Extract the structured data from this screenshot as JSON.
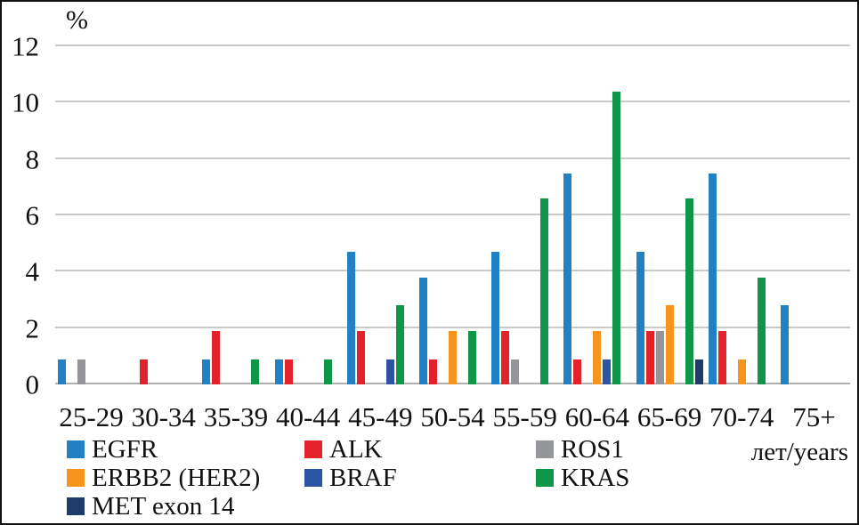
{
  "figure": {
    "y_unit_label": "%",
    "x_unit_label": "лет/years"
  },
  "chart_data": {
    "type": "bar",
    "title": "",
    "xlabel": "лет/years",
    "ylabel": "%",
    "ylim": [
      0,
      12
    ],
    "yticks": [
      0,
      2,
      4,
      6,
      8,
      10,
      12
    ],
    "grid": true,
    "legend_position": "bottom",
    "categories": [
      "25-29",
      "30-34",
      "35-39",
      "40-44",
      "45-49",
      "50-54",
      "55-59",
      "60-64",
      "65-69",
      "70-74",
      "75+"
    ],
    "series": [
      {
        "name": "EGFR",
        "color": "#2181C4",
        "values": [
          0.9,
          0,
          0.9,
          0.9,
          4.7,
          3.8,
          4.7,
          7.5,
          4.7,
          7.5,
          2.8
        ]
      },
      {
        "name": "ALK",
        "color": "#E42229",
        "values": [
          0,
          0.9,
          1.9,
          0.9,
          1.9,
          0.9,
          1.9,
          0.9,
          1.9,
          1.9,
          0
        ]
      },
      {
        "name": "ROS1",
        "color": "#939598",
        "values": [
          0.9,
          0,
          0,
          0,
          0,
          0,
          0.9,
          0,
          1.9,
          0,
          0
        ]
      },
      {
        "name": "ERBB2 (HER2)",
        "color": "#F7941E",
        "values": [
          0,
          0,
          0,
          0,
          0,
          1.9,
          0,
          1.9,
          2.8,
          0.9,
          0
        ]
      },
      {
        "name": "BRAF",
        "color": "#2D53A5",
        "values": [
          0,
          0,
          0,
          0,
          0.9,
          0,
          0,
          0.9,
          0,
          0,
          0
        ]
      },
      {
        "name": "KRAS",
        "color": "#109649",
        "values": [
          0,
          0,
          0.9,
          0.9,
          2.8,
          1.9,
          6.6,
          10.4,
          6.6,
          3.8,
          0
        ]
      },
      {
        "name": "MET exon 14",
        "color": "#1F3B67",
        "values": [
          0,
          0,
          0,
          0,
          0,
          0,
          0,
          0,
          0.9,
          0,
          0
        ]
      }
    ]
  }
}
